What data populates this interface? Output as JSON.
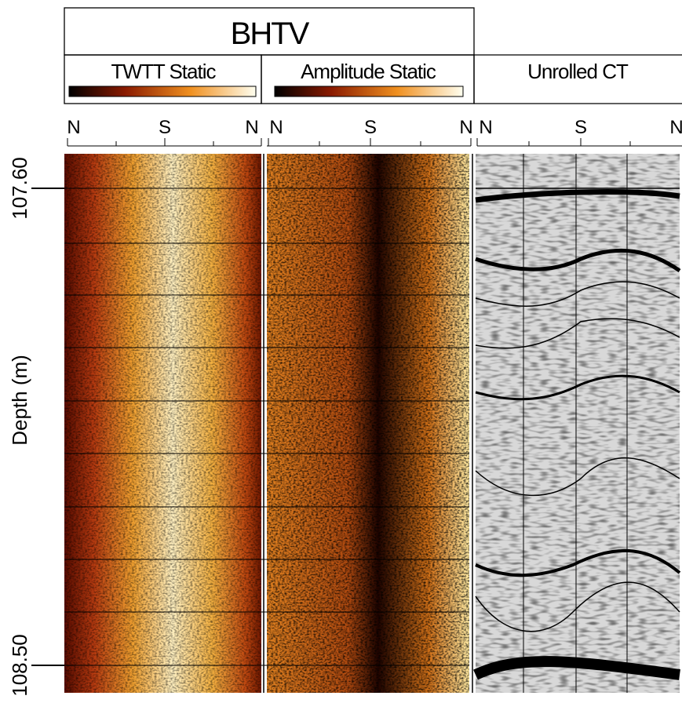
{
  "header": {
    "title": "BHTV"
  },
  "panels": [
    {
      "title": "TWTT Static",
      "orientation": [
        "N",
        "S",
        "N"
      ]
    },
    {
      "title": "Amplitude Static",
      "orientation": [
        "N",
        "S",
        "N"
      ]
    },
    {
      "title": "Unrolled CT",
      "orientation": [
        "N",
        "S",
        "N"
      ]
    }
  ],
  "depth_axis": {
    "label": "Depth (m)",
    "ticks": [
      "107.60",
      "108.50"
    ]
  }
}
